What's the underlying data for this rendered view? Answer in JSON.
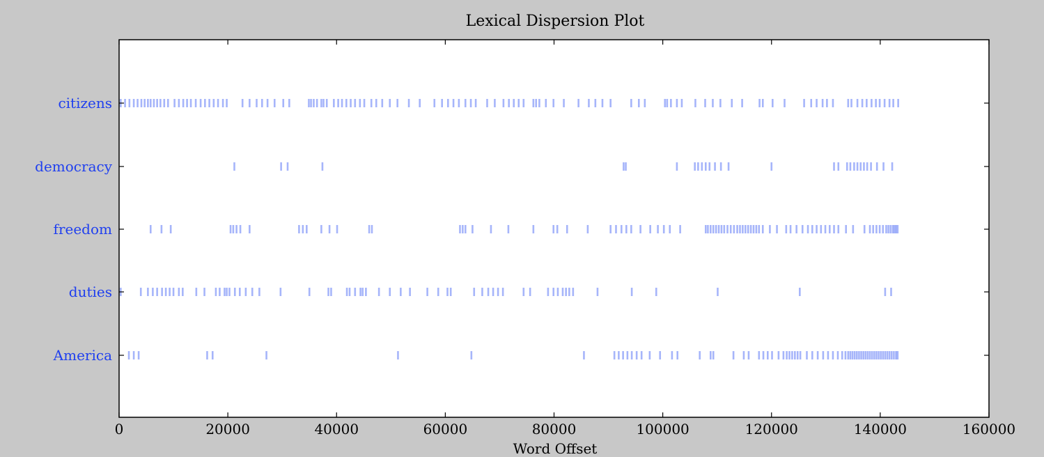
{
  "chart_data": {
    "type": "scatter",
    "title": "Lexical Dispersion Plot",
    "xlabel": "Word Offset",
    "ylabel": "",
    "xlim": [
      0,
      160000
    ],
    "x_ticks": [
      0,
      20000,
      40000,
      60000,
      80000,
      100000,
      120000,
      140000,
      160000
    ],
    "grid": false,
    "marker": "|",
    "colors": {
      "figure_bg": "#c8c8c8",
      "axes_bg": "#ffffff",
      "marker": "#3a5af5",
      "label": "#1f3fef",
      "text": "#000000"
    },
    "categories": [
      "citizens",
      "democracy",
      "freedom",
      "duties",
      "America"
    ],
    "series": [
      {
        "name": "citizens",
        "offsets": [
          300,
          1100,
          1900,
          2700,
          3400,
          4100,
          4700,
          5300,
          5800,
          6400,
          7000,
          7600,
          8300,
          9000,
          10200,
          11000,
          11800,
          12500,
          13200,
          14100,
          15000,
          15800,
          16600,
          17400,
          18200,
          19100,
          19800,
          22700,
          24000,
          25300,
          26300,
          27300,
          28600,
          30200,
          31300,
          34900,
          35300,
          35800,
          36400,
          37200,
          37600,
          38200,
          39500,
          40300,
          41000,
          41800,
          42600,
          43400,
          44300,
          45100,
          46400,
          47300,
          48400,
          49800,
          51200,
          53300,
          55300,
          58000,
          59400,
          60500,
          61500,
          62500,
          63700,
          64700,
          65600,
          67700,
          69100,
          70700,
          71700,
          72600,
          73500,
          74400,
          76200,
          76700,
          77300,
          78500,
          79900,
          81800,
          84500,
          86400,
          87600,
          88900,
          90400,
          94200,
          95600,
          96700,
          100400,
          100800,
          101500,
          102600,
          103500,
          106000,
          107800,
          109200,
          110600,
          112700,
          114600,
          117800,
          118400,
          120200,
          122400,
          126000,
          127300,
          128300,
          129400,
          130200,
          131300,
          134100,
          134700,
          135800,
          136700,
          137500,
          138400,
          139200,
          139900,
          140800,
          141700,
          142400,
          143300
        ]
      },
      {
        "name": "democracy",
        "offsets": [
          21200,
          29800,
          31000,
          37400,
          92800,
          93200,
          102600,
          105900,
          106500,
          107200,
          107900,
          108600,
          109600,
          110700,
          112100,
          120000,
          131500,
          132300,
          133900,
          134500,
          135200,
          135800,
          136400,
          137000,
          137600,
          138300,
          139400,
          140600,
          142200
        ]
      },
      {
        "name": "freedom",
        "offsets": [
          5800,
          7800,
          9500,
          20500,
          21000,
          21600,
          22300,
          24000,
          33100,
          33800,
          34500,
          37200,
          38700,
          40100,
          46000,
          46500,
          62700,
          63200,
          63700,
          65000,
          68400,
          71600,
          76200,
          79900,
          80600,
          82400,
          86200,
          90400,
          91400,
          92400,
          93300,
          94200,
          95900,
          97700,
          99100,
          100200,
          101300,
          103200,
          107900,
          108300,
          108800,
          109300,
          109800,
          110300,
          110800,
          111300,
          111900,
          112500,
          113100,
          113700,
          114200,
          114700,
          115200,
          115700,
          116200,
          116700,
          117200,
          117700,
          118400,
          119700,
          121000,
          122700,
          123500,
          124600,
          125700,
          126700,
          127500,
          128300,
          129100,
          129900,
          130700,
          131500,
          132300,
          133700,
          135000,
          137100,
          138100,
          138700,
          139300,
          139900,
          140500,
          141100,
          141500,
          141900,
          142300,
          142600,
          142900,
          143200
        ]
      },
      {
        "name": "duties",
        "offsets": [
          300,
          4000,
          5300,
          6200,
          7000,
          7900,
          8600,
          9300,
          10000,
          11000,
          11700,
          14200,
          15700,
          17800,
          18500,
          19400,
          19800,
          20300,
          21300,
          22200,
          23300,
          24500,
          25800,
          29700,
          35000,
          38500,
          39000,
          41900,
          42400,
          43400,
          44400,
          44800,
          45400,
          47800,
          49800,
          51800,
          53500,
          56700,
          58700,
          60400,
          61000,
          65300,
          66800,
          67900,
          68800,
          69700,
          70600,
          74400,
          75600,
          78900,
          79900,
          80700,
          81600,
          82200,
          82800,
          83500,
          88000,
          94300,
          98800,
          110100,
          125200,
          140900,
          142000
        ]
      },
      {
        "name": "America",
        "offsets": [
          1800,
          2700,
          3600,
          16200,
          17200,
          27100,
          51300,
          64800,
          85500,
          91100,
          91900,
          92700,
          93500,
          94300,
          95200,
          96100,
          97600,
          99500,
          101700,
          102700,
          106800,
          108800,
          109300,
          113000,
          114900,
          115800,
          117700,
          118500,
          119300,
          120100,
          121300,
          122200,
          122800,
          123300,
          123800,
          124300,
          124800,
          125300,
          126500,
          127500,
          128500,
          129500,
          130400,
          131300,
          132200,
          133000,
          133600,
          134100,
          134500,
          134900,
          135300,
          135700,
          136100,
          136500,
          136900,
          137300,
          137700,
          138100,
          138500,
          138900,
          139300,
          139700,
          140100,
          140500,
          140900,
          141300,
          141700,
          142100,
          142500,
          142900,
          143200
        ]
      }
    ]
  }
}
